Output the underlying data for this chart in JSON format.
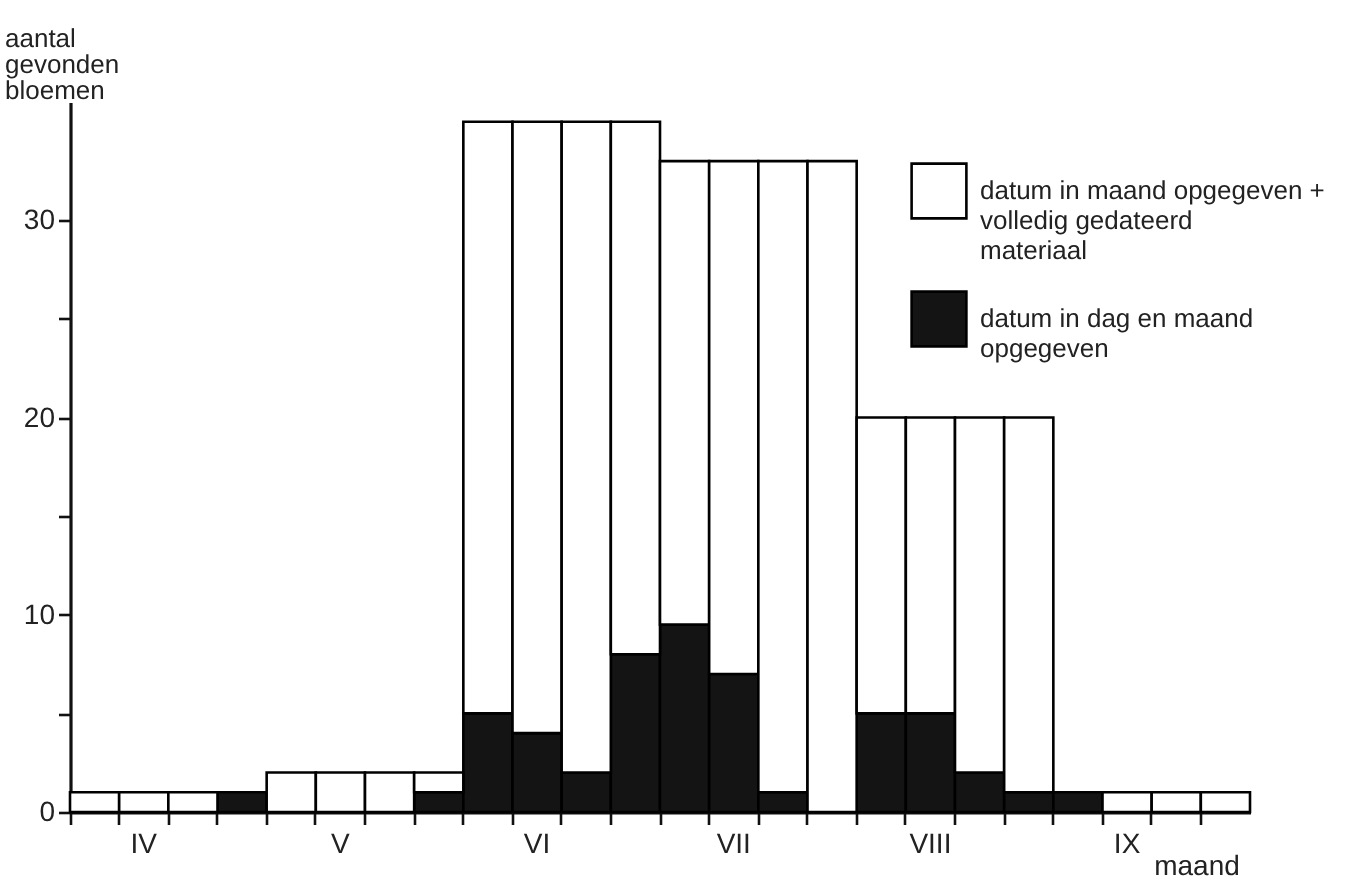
{
  "chart_data": {
    "type": "bar",
    "stacked": true,
    "xlabel": "maand",
    "ylabel": "aantal gevonden bloemen",
    "categories": [
      null,
      "IV",
      null,
      null,
      null,
      "V",
      null,
      null,
      null,
      "VI",
      null,
      null,
      null,
      "VII",
      null,
      null,
      null,
      "VIII",
      null,
      null,
      null,
      "IX",
      null,
      null
    ],
    "ylim": [
      0,
      36
    ],
    "yticks": [
      0,
      {
        "value": 5,
        "label": null
      },
      10,
      {
        "value": 15,
        "label": null
      },
      20,
      {
        "value": 25,
        "label": null
      },
      30
    ],
    "legend": "top right",
    "series": [
      {
        "name": "datum in dag en maand opgegeven",
        "color": "#141414",
        "values": [
          0,
          0,
          0,
          1,
          0,
          0,
          0,
          1,
          5,
          4,
          2,
          8,
          9.5,
          7,
          1,
          0,
          5,
          5,
          2,
          1,
          1,
          null,
          null,
          null
        ]
      },
      {
        "name": "datum in maand opgegeven + volledig gedateerd materiaal",
        "color": "#ffffff",
        "values": [
          1,
          1,
          1,
          null,
          2,
          2,
          2,
          1,
          30,
          31,
          33,
          27,
          23.5,
          26,
          32,
          33,
          15,
          15,
          18,
          19,
          null,
          1,
          1,
          1
        ]
      }
    ]
  }
}
